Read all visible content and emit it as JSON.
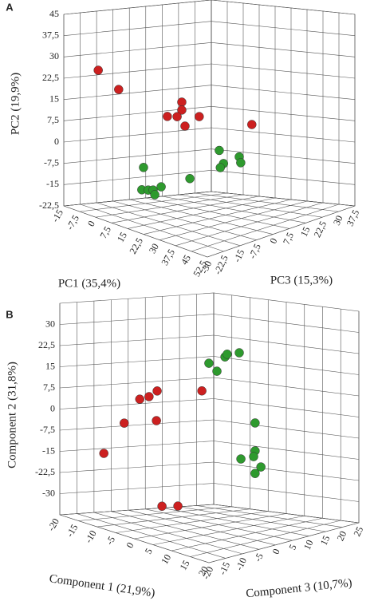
{
  "chart_data": [
    {
      "type": "scatter3d",
      "label": "A",
      "xlabel": "PC1 (35,4%)",
      "ylabel": "PC2 (19,9%)",
      "zlabel": "PC3 (15,3%)",
      "xlim": [
        -15,
        52.5
      ],
      "ylim": [
        -22.5,
        45
      ],
      "zlim": [
        -30,
        37.5
      ],
      "xticks": [
        -15,
        {
          "value": -7.5,
          "label": "-7,5"
        },
        0,
        {
          "value": 7.5,
          "label": "7,5"
        },
        15,
        {
          "value": 22.5,
          "label": "22,5"
        },
        30,
        {
          "value": 37.5,
          "label": "37,5"
        },
        45,
        {
          "value": 52.5,
          "label": "52,5"
        }
      ],
      "yticks": [
        {
          "value": -22.5,
          "label": "-22,5"
        },
        -15,
        {
          "value": -7.5,
          "label": "-7,5"
        },
        0,
        {
          "value": 7.5,
          "label": "7,5"
        },
        15,
        {
          "value": 22.5,
          "label": "22,5"
        },
        30,
        {
          "value": 37.5,
          "label": "37,5"
        },
        45
      ],
      "zticks": [
        -30,
        {
          "value": -22.5,
          "label": "-22,5"
        },
        -15,
        {
          "value": -7.5,
          "label": "-7,5"
        },
        0,
        {
          "value": 7.5,
          "label": "7,5"
        },
        15,
        {
          "value": 22.5,
          "label": "22,5"
        },
        30,
        {
          "value": 37.5,
          "label": "37,5"
        }
      ],
      "grid": true,
      "series": [
        {
          "color": "#cc2020",
          "x": [
            -6,
            3.6,
            5.8,
            5.8,
            -1,
            3.6,
            14,
            7.3,
            24.8
          ],
          "y": [
            27,
            22.6,
            15.1,
            12.3,
            8.9,
            9.6,
            11.4,
            6.9,
            7.9
          ],
          "z": [
            -23,
            -23,
            3.75,
            3.75,
            3.75,
            3.75,
            3.75,
            3.75,
            17.3
          ]
        },
        {
          "color": "#2e9a2e",
          "x": [
            -12.2,
            -13,
            -10,
            -7.7,
            -6.9,
            -3.9,
            9.6,
            2.6,
            4.6,
            3.1,
            12,
            12.7
          ],
          "y": [
            -11,
            -19,
            -18.6,
            -18.2,
            -19.7,
            -16.4,
            -11.2,
            -5,
            -9.4,
            -11,
            -6.2,
            -8.2
          ],
          "z": [
            3.75,
            3.75,
            3.75,
            3.75,
            3.75,
            3.75,
            3.75,
            24,
            24,
            24,
            24,
            24
          ]
        }
      ]
    },
    {
      "type": "scatter3d",
      "label": "B",
      "xlabel": "Component 1 (21,9%)",
      "ylabel": "Component 2 (31,8%)",
      "zlabel": "Component 3 (10,7%)",
      "xlim": [
        -20,
        20
      ],
      "ylim": [
        -37.5,
        37.5
      ],
      "zlim": [
        -20,
        25
      ],
      "xticks": [
        -20,
        -15,
        -10,
        -5,
        0,
        5,
        10,
        15,
        20
      ],
      "yticks": [
        -30,
        {
          "value": -22.5,
          "label": "-22,5"
        },
        -15,
        {
          "value": -7.5,
          "label": "-7,5"
        },
        0,
        {
          "value": 7.5,
          "label": "7,5"
        },
        15,
        {
          "value": 22.5,
          "label": "22,5"
        },
        30
      ],
      "zticks": [
        -20,
        -15,
        -10,
        -5,
        0,
        5,
        10,
        15,
        20,
        25
      ],
      "grid": true,
      "series": [
        {
          "color": "#cc2020",
          "x": [
            -18.5,
            -13,
            -8.8,
            -6.3,
            -4.1,
            -4.3,
            -2.8,
            1.5,
            -2.3
          ],
          "y": [
            -16.1,
            -3.4,
            6.6,
            8.4,
            11.2,
            0.6,
            -29.2,
            -27.6,
            9.8
          ],
          "z": [
            -8.75,
            -8.75,
            -8.75,
            -8.75,
            -8.75,
            -8.75,
            -8.75,
            -8.75,
            2.5
          ]
        },
        {
          "color": "#2e9a2e",
          "x": [
            -8.7,
            -6.5,
            -4.3,
            -3.7,
            -0.4,
            -4.4,
            -4.4,
            -8.3,
            -4.8,
            -2.8,
            -4.4
          ],
          "y": [
            16.4,
            14.1,
            19.7,
            20.8,
            22.1,
            -5.3,
            -15.2,
            -18.8,
            -17.3,
            -20.6,
            -23.2
          ],
          "z": [
            11.5,
            11.5,
            11.5,
            11.5,
            11.5,
            20.5,
            20.5,
            20.5,
            20.5,
            20.5,
            20.5
          ]
        }
      ]
    }
  ]
}
